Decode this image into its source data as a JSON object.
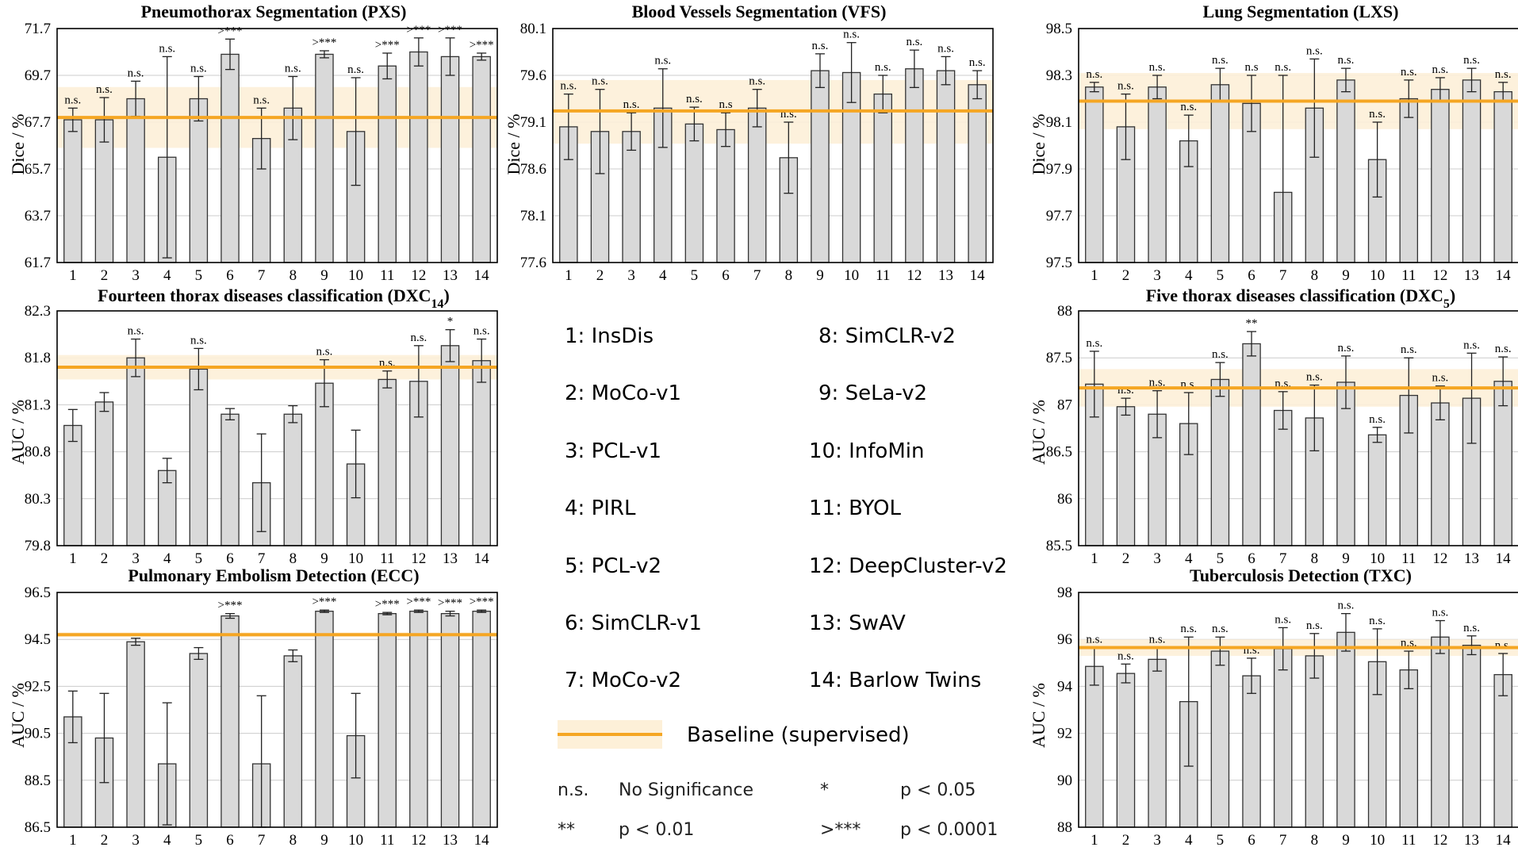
{
  "colors": {
    "bar": "#d9d9d9",
    "baseline": "#f5a623",
    "band": "#fdf0d8",
    "axis": "#000000",
    "grid": "#cccccc"
  },
  "chart_data": [
    {
      "id": "pxs",
      "type": "bar",
      "title": "Pneumothorax Segmentation (PXS)",
      "ylabel": "Dice / %",
      "ylim": [
        61.7,
        71.7
      ],
      "yticks": [
        "71.7",
        "69.7",
        "67.7",
        "65.7",
        "63.7",
        "61.7"
      ],
      "categories": [
        "1",
        "2",
        "3",
        "4",
        "5",
        "6",
        "7",
        "8",
        "9",
        "10",
        "11",
        "12",
        "13",
        "14"
      ],
      "values": [
        67.8,
        67.8,
        68.7,
        66.2,
        68.7,
        70.6,
        67.0,
        68.3,
        70.6,
        67.3,
        70.1,
        70.7,
        70.5,
        70.5
      ],
      "errors": [
        0.5,
        0.95,
        0.75,
        4.3,
        0.95,
        0.65,
        1.3,
        1.35,
        0.15,
        2.3,
        0.55,
        0.6,
        0.8,
        0.15
      ],
      "annotations": [
        "n.s.",
        "n.s.",
        "n.s.",
        "n.s.",
        "n.s.",
        ">***",
        "n.s.",
        "n.s.",
        ">***",
        "n.s.",
        ">***",
        ">***",
        ">***",
        ">***"
      ],
      "baseline": {
        "value": 67.9,
        "lower": 66.6,
        "upper": 69.2
      }
    },
    {
      "id": "vfs",
      "type": "bar",
      "title": "Blood Vessels Segmentation (VFS)",
      "ylabel": "Dice / %",
      "ylim": [
        77.6,
        80.1
      ],
      "yticks": [
        "80.1",
        "79.6",
        "79.1",
        "78.6",
        "78.1",
        "77.6"
      ],
      "categories": [
        "1",
        "2",
        "3",
        "4",
        "5",
        "6",
        "7",
        "8",
        "9",
        "10",
        "11",
        "12",
        "13",
        "14"
      ],
      "values": [
        79.05,
        79.0,
        79.0,
        79.25,
        79.08,
        79.02,
        79.25,
        78.72,
        79.65,
        79.63,
        79.4,
        79.67,
        79.65,
        79.5
      ],
      "errors": [
        0.35,
        0.45,
        0.2,
        0.42,
        0.18,
        0.18,
        0.2,
        0.38,
        0.18,
        0.32,
        0.2,
        0.2,
        0.15,
        0.15
      ],
      "annotations": [
        "n.s.",
        "n.s.",
        "n.s.",
        "n.s.",
        "n.s.",
        "n.s",
        "n.s.",
        "n.s.",
        "n.s.",
        "n.s.",
        "n.s.",
        "n.s.",
        "n.s.",
        "n.s."
      ],
      "baseline": {
        "value": 79.22,
        "lower": 78.87,
        "upper": 79.55
      }
    },
    {
      "id": "lxs",
      "type": "bar",
      "title": "Lung Segmentation (LXS)",
      "ylabel": "Dice / %",
      "ylim": [
        97.5,
        98.5
      ],
      "yticks": [
        "98.5",
        "98.3",
        "98.1",
        "97.9",
        "97.7",
        "97.5"
      ],
      "categories": [
        "1",
        "2",
        "3",
        "4",
        "5",
        "6",
        "7",
        "8",
        "9",
        "10",
        "11",
        "12",
        "13",
        "14"
      ],
      "values": [
        98.25,
        98.08,
        98.25,
        98.02,
        98.26,
        98.18,
        97.8,
        98.16,
        98.28,
        97.94,
        98.2,
        98.24,
        98.28,
        98.23
      ],
      "errors": [
        0.02,
        0.14,
        0.05,
        0.11,
        0.07,
        0.12,
        0.5,
        0.21,
        0.05,
        0.16,
        0.08,
        0.05,
        0.05,
        0.04
      ],
      "annotations": [
        "n.s.",
        "n.s.",
        "n.s.",
        "n.s.",
        "n.s.",
        "n.s",
        "n.s.",
        "n.s.",
        "n.s.",
        "n.s.",
        "n.s.",
        "n.s.",
        "n.s.",
        "n.s."
      ],
      "baseline": {
        "value": 98.19,
        "lower": 98.07,
        "upper": 98.31
      }
    },
    {
      "id": "dxc14",
      "type": "bar",
      "title": "Fourteen thorax diseases classification (DXC",
      "title_sub": "14",
      "title_end": ")",
      "ylabel": "AUC / %",
      "ylim": [
        79.8,
        82.3
      ],
      "yticks": [
        "82.3",
        "81.8",
        "81.3",
        "80.8",
        "80.3",
        "79.8"
      ],
      "categories": [
        "1",
        "2",
        "3",
        "4",
        "5",
        "6",
        "7",
        "8",
        "9",
        "10",
        "11",
        "12",
        "13",
        "14"
      ],
      "values": [
        81.08,
        81.33,
        81.8,
        80.6,
        81.68,
        81.2,
        80.47,
        81.2,
        81.53,
        80.67,
        81.57,
        81.55,
        81.93,
        81.77
      ],
      "errors": [
        0.17,
        0.1,
        0.2,
        0.13,
        0.22,
        0.06,
        0.52,
        0.09,
        0.25,
        0.36,
        0.09,
        0.38,
        0.17,
        0.23
      ],
      "annotations": [
        "",
        "",
        "n.s.",
        "",
        "n.s.",
        "",
        "",
        "",
        "n.s.",
        "",
        "n.s.",
        "n.s.",
        "*",
        "n.s."
      ],
      "baseline": {
        "value": 81.7,
        "lower": 81.57,
        "upper": 81.83
      }
    },
    {
      "id": "dxc5",
      "type": "bar",
      "title": "Five thorax diseases classification (DXC",
      "title_sub": "5",
      "title_end": ")",
      "ylabel": "AUC / %",
      "ylim": [
        85.5,
        88.0
      ],
      "yticks": [
        "88",
        "87.5",
        "87",
        "86.5",
        "86",
        "85.5"
      ],
      "categories": [
        "1",
        "2",
        "3",
        "4",
        "5",
        "6",
        "7",
        "8",
        "9",
        "10",
        "11",
        "12",
        "13",
        "14"
      ],
      "values": [
        87.22,
        86.98,
        86.9,
        86.8,
        87.27,
        87.65,
        86.94,
        86.86,
        87.24,
        86.68,
        87.1,
        87.02,
        87.07,
        87.25
      ],
      "errors": [
        0.35,
        0.09,
        0.25,
        0.33,
        0.18,
        0.13,
        0.2,
        0.35,
        0.28,
        0.08,
        0.4,
        0.18,
        0.48,
        0.26
      ],
      "annotations": [
        "n.s.",
        "n.s.",
        "n.s.",
        "n.s.",
        "n.s.",
        "**",
        "n.s.",
        "n.s.",
        "n.s.",
        "n.s.",
        "n.s.",
        "n.s.",
        "n.s.",
        "n.s."
      ],
      "baseline": {
        "value": 87.18,
        "lower": 86.98,
        "upper": 87.38
      }
    },
    {
      "id": "ecc",
      "type": "bar",
      "title": "Pulmonary Embolism Detection (ECC)",
      "ylabel": "AUC / %",
      "ylim": [
        86.5,
        96.5
      ],
      "yticks": [
        "96.5",
        "94.5",
        "92.5",
        "90.5",
        "88.5",
        "86.5"
      ],
      "categories": [
        "1",
        "2",
        "3",
        "4",
        "5",
        "6",
        "7",
        "8",
        "9",
        "10",
        "11",
        "12",
        "13",
        "14"
      ],
      "values": [
        91.2,
        90.3,
        94.4,
        89.2,
        93.9,
        95.5,
        89.2,
        93.8,
        95.7,
        90.4,
        95.6,
        95.7,
        95.6,
        95.7
      ],
      "errors": [
        1.1,
        1.9,
        0.15,
        2.6,
        0.25,
        0.1,
        2.9,
        0.25,
        0.05,
        1.8,
        0.05,
        0.05,
        0.1,
        0.05
      ],
      "annotations": [
        "",
        "",
        "",
        "",
        "",
        " >***",
        "",
        "",
        ">***",
        "",
        ">***",
        ">***",
        ">***",
        ">***"
      ],
      "baseline": {
        "value": 94.7,
        "lower": 94.6,
        "upper": 94.8
      }
    },
    {
      "id": "txc",
      "type": "bar",
      "title": "Tuberculosis Detection (TXC)",
      "ylabel": "AUC / %",
      "ylim": [
        88,
        98
      ],
      "yticks": [
        "98",
        "96",
        "94",
        "92",
        "90",
        "88"
      ],
      "categories": [
        "1",
        "2",
        "3",
        "4",
        "5",
        "6",
        "7",
        "8",
        "9",
        "10",
        "11",
        "12",
        "13",
        "14"
      ],
      "values": [
        94.85,
        94.55,
        95.15,
        93.35,
        95.5,
        94.45,
        95.6,
        95.3,
        96.3,
        95.05,
        94.7,
        96.1,
        95.75,
        94.5
      ],
      "errors": [
        0.8,
        0.4,
        0.5,
        2.75,
        0.6,
        0.75,
        0.9,
        0.95,
        0.8,
        1.4,
        0.8,
        0.7,
        0.4,
        0.9
      ],
      "annotations": [
        "n.s.",
        "n.s.",
        "n.s.",
        "n.s.",
        "n.s.",
        "n.s.",
        "n.s.",
        "n.s.",
        "n.s.",
        "n.s.",
        "n.s.",
        "n.s.",
        "n.s.",
        "n.s."
      ],
      "baseline": {
        "value": 95.65,
        "lower": 95.3,
        "upper": 96.0
      }
    }
  ],
  "legend": {
    "methods_left": [
      "1: InsDis",
      "2: MoCo-v1",
      "3: PCL-v1",
      "4: PIRL",
      "5: PCL-v2",
      "6: SimCLR-v1",
      "7: MoCo-v2"
    ],
    "methods_right": [
      "8: SimCLR-v2",
      "9: SeLa-v2",
      "10: InfoMin",
      "11: BYOL",
      "12: DeepCluster-v2",
      "13: SwAV",
      "14: Barlow Twins"
    ],
    "baseline_label": "Baseline (supervised)",
    "significance": [
      {
        "symbol": "n.s.",
        "meaning": "No Significance"
      },
      {
        "symbol": "*",
        "meaning": "p < 0.05"
      },
      {
        "symbol": "**",
        "meaning": "p < 0.01"
      },
      {
        "symbol": ">***",
        "meaning": "p < 0.0001"
      }
    ]
  }
}
